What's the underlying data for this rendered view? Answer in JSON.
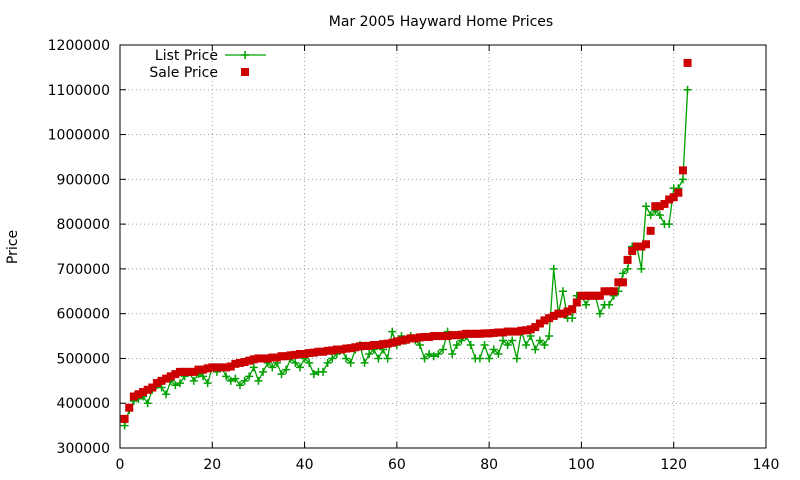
{
  "chart_data": {
    "type": "line",
    "title": "Mar 2005 Hayward Home Prices",
    "xlabel": "",
    "ylabel": "Price",
    "xlim": [
      0,
      140
    ],
    "ylim": [
      300000,
      1200000
    ],
    "xticks": [
      0,
      20,
      40,
      60,
      80,
      100,
      120,
      140
    ],
    "yticks": [
      300000,
      400000,
      500000,
      600000,
      700000,
      800000,
      900000,
      1000000,
      1100000,
      1200000
    ],
    "grid": true,
    "legend_position": "top-left",
    "x": [
      1,
      2,
      3,
      4,
      5,
      6,
      7,
      8,
      9,
      10,
      11,
      12,
      13,
      14,
      15,
      16,
      17,
      18,
      19,
      20,
      21,
      22,
      23,
      24,
      25,
      26,
      27,
      28,
      29,
      30,
      31,
      32,
      33,
      34,
      35,
      36,
      37,
      38,
      39,
      40,
      41,
      42,
      43,
      44,
      45,
      46,
      47,
      48,
      49,
      50,
      51,
      52,
      53,
      54,
      55,
      56,
      57,
      58,
      59,
      60,
      61,
      62,
      63,
      64,
      65,
      66,
      67,
      68,
      69,
      70,
      71,
      72,
      73,
      74,
      75,
      76,
      77,
      78,
      79,
      80,
      81,
      82,
      83,
      84,
      85,
      86,
      87,
      88,
      89,
      90,
      91,
      92,
      93,
      94,
      95,
      96,
      97,
      98,
      99,
      100,
      101,
      102,
      103,
      104,
      105,
      106,
      107,
      108,
      109,
      110,
      111,
      112,
      113,
      114,
      115,
      116,
      117,
      118,
      119,
      120,
      121,
      122,
      123
    ],
    "series": [
      {
        "name": "List Price",
        "color": "#00a000",
        "marker": "plus",
        "line": true,
        "values": [
          350000,
          385000,
          405000,
          410000,
          415000,
          400000,
          430000,
          440000,
          435000,
          420000,
          450000,
          440000,
          445000,
          460000,
          470000,
          450000,
          465000,
          460000,
          445000,
          480000,
          470000,
          480000,
          460000,
          450000,
          455000,
          440000,
          450000,
          460000,
          480000,
          450000,
          470000,
          490000,
          480000,
          490000,
          465000,
          475000,
          500000,
          490000,
          480000,
          500000,
          490000,
          465000,
          470000,
          470000,
          490000,
          500000,
          510000,
          520000,
          500000,
          490000,
          520000,
          530000,
          490000,
          510000,
          520000,
          500000,
          520000,
          500000,
          560000,
          530000,
          550000,
          540000,
          550000,
          540000,
          530000,
          500000,
          510000,
          505000,
          510000,
          520000,
          560000,
          510000,
          530000,
          540000,
          550000,
          530000,
          500000,
          500000,
          530000,
          500000,
          520000,
          510000,
          540000,
          530000,
          540000,
          500000,
          560000,
          530000,
          550000,
          520000,
          540000,
          530000,
          550000,
          700000,
          600000,
          650000,
          590000,
          590000,
          640000,
          640000,
          620000,
          640000,
          640000,
          600000,
          620000,
          620000,
          640000,
          650000,
          690000,
          700000,
          750000,
          750000,
          700000,
          840000,
          820000,
          830000,
          820000,
          800000,
          800000,
          880000,
          880000,
          900000,
          1100000
        ]
      },
      {
        "name": "Sale Price",
        "color": "#cc0000",
        "marker": "square",
        "line": false,
        "values": [
          365000,
          390000,
          415000,
          420000,
          425000,
          430000,
          435000,
          445000,
          450000,
          455000,
          460000,
          465000,
          470000,
          470000,
          470000,
          470000,
          475000,
          475000,
          478000,
          480000,
          480000,
          480000,
          480000,
          482000,
          488000,
          490000,
          492000,
          495000,
          498000,
          500000,
          500000,
          500000,
          502000,
          502000,
          505000,
          505000,
          507000,
          508000,
          510000,
          510000,
          512000,
          513000,
          515000,
          515000,
          517000,
          518000,
          520000,
          520000,
          522000,
          523000,
          525000,
          527000,
          528000,
          528000,
          530000,
          530000,
          532000,
          533000,
          535000,
          538000,
          540000,
          542000,
          545000,
          545000,
          547000,
          548000,
          548000,
          550000,
          550000,
          550000,
          550000,
          552000,
          552000,
          553000,
          555000,
          555000,
          555000,
          555000,
          556000,
          556000,
          557000,
          558000,
          558000,
          560000,
          560000,
          560000,
          562000,
          563000,
          565000,
          570000,
          578000,
          585000,
          590000,
          595000,
          600000,
          600000,
          605000,
          610000,
          625000,
          640000,
          640000,
          640000,
          640000,
          640000,
          650000,
          650000,
          650000,
          670000,
          670000,
          720000,
          740000,
          750000,
          750000,
          755000,
          785000,
          840000,
          840000,
          845000,
          855000,
          860000,
          870000,
          920000,
          1160000
        ]
      }
    ]
  }
}
